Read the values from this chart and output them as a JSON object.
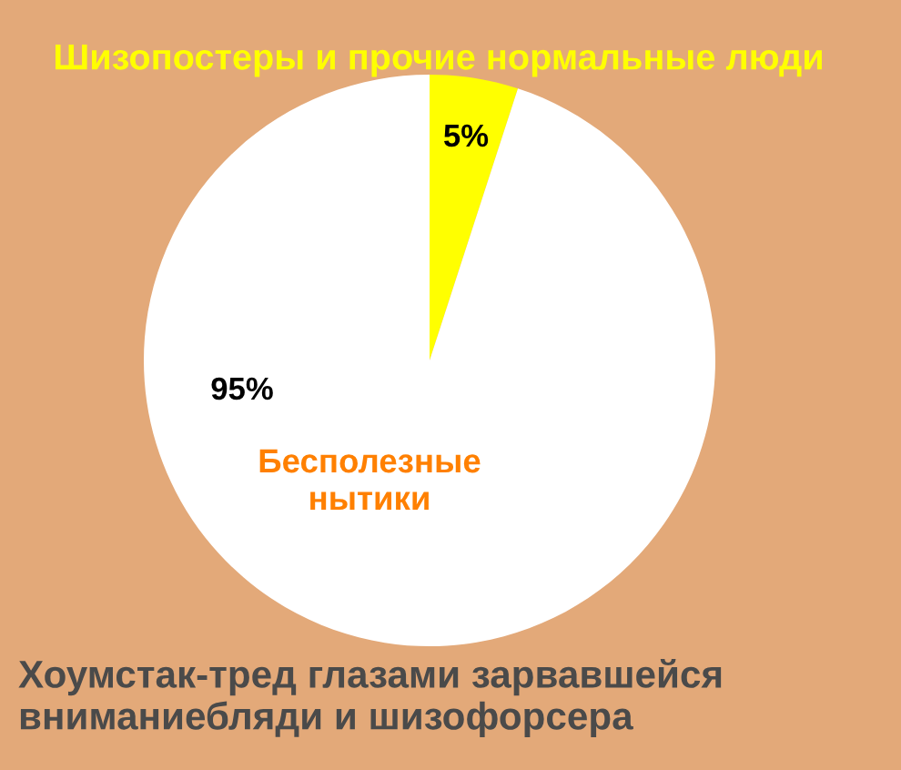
{
  "chart_data": {
    "type": "pie",
    "title": "Хоумстак-тред глазами зарвавшейся вниманиебляди и шизофорсера",
    "categories": [
      "Шизопостеры и прочие нормальные люди",
      "Бесполезные нытики"
    ],
    "values": [
      5,
      95
    ],
    "colors": [
      "#ffff00",
      "#ffffff"
    ],
    "value_labels": [
      "5%",
      "95%"
    ],
    "legend": false
  }
}
